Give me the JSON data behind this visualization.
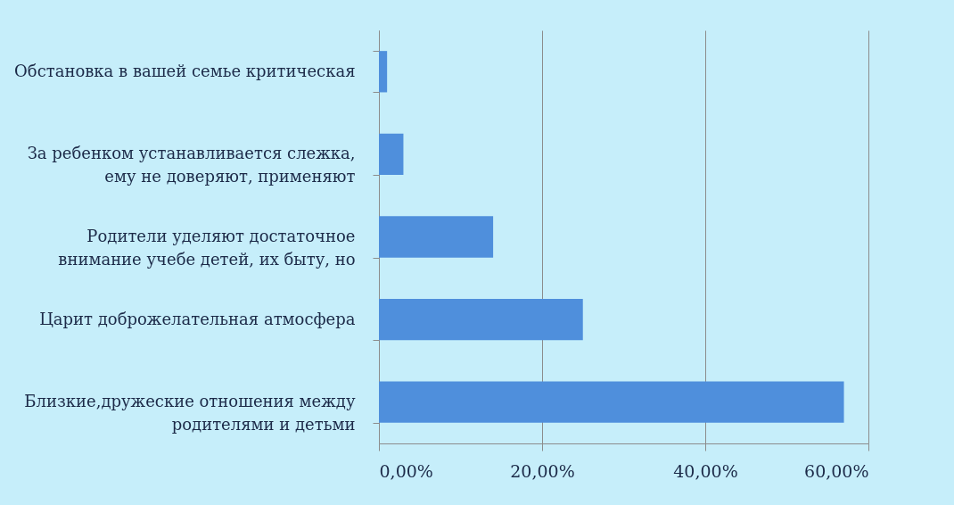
{
  "chart_data": {
    "type": "bar",
    "orientation": "horizontal",
    "categories": [
      "Обстановка в вашей семье критическая",
      "За ребенком устанавливается слежка, ему не доверяют, применяют",
      "Родители уделяют достаточное внимание учебе детей, их быту, но",
      "Царит доброжелательная атмосфера",
      "Близкие,дружеские  отношения между родителями и детьми"
    ],
    "values": [
      1,
      3,
      14,
      25,
      57
    ],
    "color": "#4f8fdc",
    "xlim": [
      0,
      60
    ],
    "xticks": [
      {
        "value": 0,
        "label": "0,00%"
      },
      {
        "value": 20,
        "label": "20,00%"
      },
      {
        "value": 40,
        "label": "40,00%"
      },
      {
        "value": 60,
        "label": "60,00%"
      }
    ],
    "grid": "x"
  }
}
